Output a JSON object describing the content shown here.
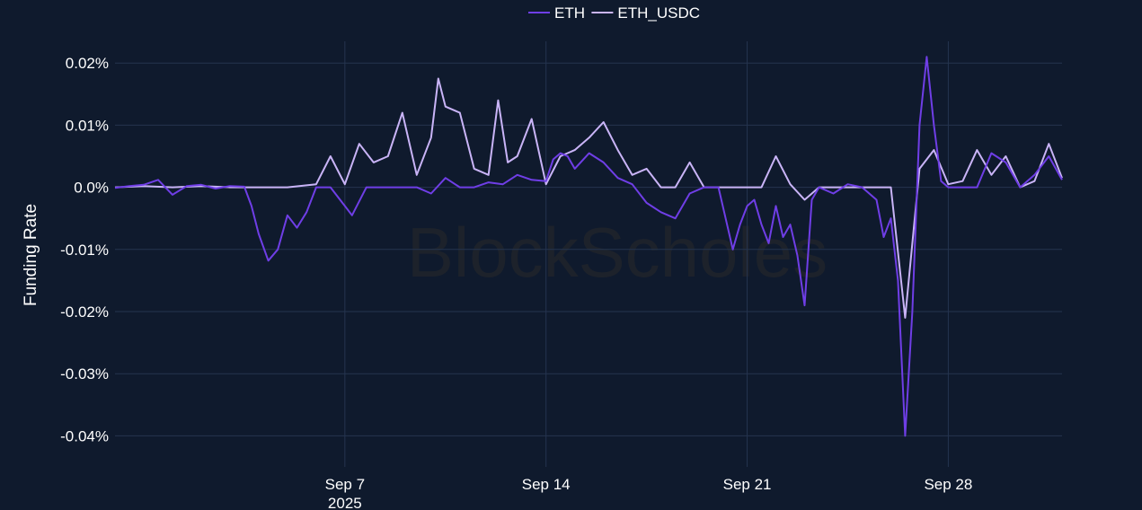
{
  "chart_data": {
    "type": "line",
    "title": "",
    "xlabel": "",
    "ylabel": "Funding Rate",
    "xlim": [
      "2025-08-30T00:00",
      "2025-10-01T23:00"
    ],
    "ylim": [
      -0.045,
      0.0235
    ],
    "y_unit": "%",
    "y_ticks": [
      0.02,
      0.01,
      0.0,
      -0.01,
      -0.02,
      -0.03,
      -0.04
    ],
    "y_tick_labels": [
      "0.02%",
      "0.01%",
      "0.0%",
      "-0.01%",
      "-0.02%",
      "-0.03%",
      "-0.04%"
    ],
    "x_ticks": [
      "2025-09-07",
      "2025-09-14",
      "2025-09-21",
      "2025-09-28"
    ],
    "x_tick_labels": [
      "Sep 7",
      "Sep 14",
      "Sep 21",
      "Sep 28"
    ],
    "x_tick_sublabels": [
      "2025",
      "",
      "",
      ""
    ],
    "grid": true,
    "legend_position": "top-center",
    "watermark": "BlockScholes",
    "series": [
      {
        "name": "ETH",
        "color": "#6f3ee6",
        "points": [
          [
            "2025-08-30T00:00",
            -0.0001
          ],
          [
            "2025-08-30T12:00",
            0.0002
          ],
          [
            "2025-08-31T00:00",
            0.0004
          ],
          [
            "2025-08-31T12:00",
            0.0012
          ],
          [
            "2025-09-01T00:00",
            -0.0012
          ],
          [
            "2025-09-01T12:00",
            0.0002
          ],
          [
            "2025-09-02T00:00",
            0.0004
          ],
          [
            "2025-09-02T12:00",
            -0.0002
          ],
          [
            "2025-09-03T00:00",
            0.0002
          ],
          [
            "2025-09-03T12:00",
            0.0001
          ],
          [
            "2025-09-03T18:00",
            -0.003
          ],
          [
            "2025-09-04T00:00",
            -0.0075
          ],
          [
            "2025-09-04T08:00",
            -0.0118
          ],
          [
            "2025-09-04T16:00",
            -0.01
          ],
          [
            "2025-09-05T00:00",
            -0.0045
          ],
          [
            "2025-09-05T08:00",
            -0.0065
          ],
          [
            "2025-09-05T16:00",
            -0.004
          ],
          [
            "2025-09-06T00:00",
            0.0
          ],
          [
            "2025-09-06T12:00",
            0.0
          ],
          [
            "2025-09-07T00:00",
            -0.003
          ],
          [
            "2025-09-07T06:00",
            -0.0045
          ],
          [
            "2025-09-07T18:00",
            0.0
          ],
          [
            "2025-09-08T12:00",
            0.0
          ],
          [
            "2025-09-09T12:00",
            0.0
          ],
          [
            "2025-09-10T00:00",
            -0.001
          ],
          [
            "2025-09-10T12:00",
            0.0015
          ],
          [
            "2025-09-11T00:00",
            0.0
          ],
          [
            "2025-09-11T12:00",
            0.0
          ],
          [
            "2025-09-12T00:00",
            0.0008
          ],
          [
            "2025-09-12T12:00",
            0.0005
          ],
          [
            "2025-09-13T00:00",
            0.002
          ],
          [
            "2025-09-13T12:00",
            0.0012
          ],
          [
            "2025-09-14T00:00",
            0.001
          ],
          [
            "2025-09-14T06:00",
            0.0045
          ],
          [
            "2025-09-14T12:00",
            0.0055
          ],
          [
            "2025-09-14T18:00",
            0.005
          ],
          [
            "2025-09-15T00:00",
            0.003
          ],
          [
            "2025-09-15T12:00",
            0.0055
          ],
          [
            "2025-09-16T00:00",
            0.004
          ],
          [
            "2025-09-16T12:00",
            0.0015
          ],
          [
            "2025-09-17T00:00",
            0.0005
          ],
          [
            "2025-09-17T12:00",
            -0.0025
          ],
          [
            "2025-09-18T00:00",
            -0.004
          ],
          [
            "2025-09-18T12:00",
            -0.005
          ],
          [
            "2025-09-19T00:00",
            -0.001
          ],
          [
            "2025-09-19T12:00",
            0.0
          ],
          [
            "2025-09-20T00:00",
            0.0
          ],
          [
            "2025-09-20T06:00",
            -0.005
          ],
          [
            "2025-09-20T12:00",
            -0.01
          ],
          [
            "2025-09-20T18:00",
            -0.006
          ],
          [
            "2025-09-21T00:00",
            -0.003
          ],
          [
            "2025-09-21T06:00",
            -0.002
          ],
          [
            "2025-09-21T12:00",
            -0.006
          ],
          [
            "2025-09-21T18:00",
            -0.009
          ],
          [
            "2025-09-22T00:00",
            -0.003
          ],
          [
            "2025-09-22T06:00",
            -0.008
          ],
          [
            "2025-09-22T12:00",
            -0.006
          ],
          [
            "2025-09-22T18:00",
            -0.011
          ],
          [
            "2025-09-23T00:00",
            -0.019
          ],
          [
            "2025-09-23T06:00",
            -0.002
          ],
          [
            "2025-09-23T12:00",
            0.0
          ],
          [
            "2025-09-24T00:00",
            -0.001
          ],
          [
            "2025-09-24T12:00",
            0.0005
          ],
          [
            "2025-09-25T00:00",
            0.0
          ],
          [
            "2025-09-25T12:00",
            -0.002
          ],
          [
            "2025-09-25T18:00",
            -0.008
          ],
          [
            "2025-09-26T00:00",
            -0.005
          ],
          [
            "2025-09-26T06:00",
            -0.015
          ],
          [
            "2025-09-26T12:00",
            -0.04
          ],
          [
            "2025-09-26T18:00",
            -0.02
          ],
          [
            "2025-09-27T00:00",
            0.01
          ],
          [
            "2025-09-27T06:00",
            0.021
          ],
          [
            "2025-09-27T12:00",
            0.01
          ],
          [
            "2025-09-27T18:00",
            0.001
          ],
          [
            "2025-09-28T00:00",
            0.0
          ],
          [
            "2025-09-28T12:00",
            0.0
          ],
          [
            "2025-09-29T00:00",
            0.0
          ],
          [
            "2025-09-29T12:00",
            0.0055
          ],
          [
            "2025-09-30T00:00",
            0.004
          ],
          [
            "2025-09-30T12:00",
            0.0
          ],
          [
            "2025-10-01T00:00",
            0.002
          ],
          [
            "2025-10-01T12:00",
            0.005
          ],
          [
            "2025-10-01T23:00",
            0.0012
          ]
        ]
      },
      {
        "name": "ETH_USDC",
        "color": "#c9b4f7",
        "points": [
          [
            "2025-08-30T00:00",
            0.0
          ],
          [
            "2025-08-31T00:00",
            0.0002
          ],
          [
            "2025-09-01T00:00",
            0.0
          ],
          [
            "2025-09-02T00:00",
            0.0002
          ],
          [
            "2025-09-03T00:00",
            0.0
          ],
          [
            "2025-09-04T00:00",
            0.0
          ],
          [
            "2025-09-05T00:00",
            0.0
          ],
          [
            "2025-09-06T00:00",
            0.0005
          ],
          [
            "2025-09-06T12:00",
            0.005
          ],
          [
            "2025-09-07T00:00",
            0.0005
          ],
          [
            "2025-09-07T12:00",
            0.007
          ],
          [
            "2025-09-08T00:00",
            0.004
          ],
          [
            "2025-09-08T12:00",
            0.005
          ],
          [
            "2025-09-09T00:00",
            0.012
          ],
          [
            "2025-09-09T12:00",
            0.002
          ],
          [
            "2025-09-10T00:00",
            0.008
          ],
          [
            "2025-09-10T06:00",
            0.0175
          ],
          [
            "2025-09-10T12:00",
            0.013
          ],
          [
            "2025-09-11T00:00",
            0.012
          ],
          [
            "2025-09-11T12:00",
            0.003
          ],
          [
            "2025-09-12T00:00",
            0.002
          ],
          [
            "2025-09-12T08:00",
            0.014
          ],
          [
            "2025-09-12T16:00",
            0.004
          ],
          [
            "2025-09-13T00:00",
            0.005
          ],
          [
            "2025-09-13T12:00",
            0.011
          ],
          [
            "2025-09-14T00:00",
            0.0005
          ],
          [
            "2025-09-14T12:00",
            0.005
          ],
          [
            "2025-09-15T00:00",
            0.006
          ],
          [
            "2025-09-15T12:00",
            0.008
          ],
          [
            "2025-09-16T00:00",
            0.0105
          ],
          [
            "2025-09-16T12:00",
            0.006
          ],
          [
            "2025-09-17T00:00",
            0.002
          ],
          [
            "2025-09-17T12:00",
            0.003
          ],
          [
            "2025-09-18T00:00",
            0.0
          ],
          [
            "2025-09-18T12:00",
            0.0
          ],
          [
            "2025-09-19T00:00",
            0.004
          ],
          [
            "2025-09-19T12:00",
            0.0
          ],
          [
            "2025-09-20T00:00",
            0.0
          ],
          [
            "2025-09-21T00:00",
            0.0
          ],
          [
            "2025-09-21T12:00",
            0.0
          ],
          [
            "2025-09-22T00:00",
            0.005
          ],
          [
            "2025-09-22T12:00",
            0.0005
          ],
          [
            "2025-09-23T00:00",
            -0.002
          ],
          [
            "2025-09-23T12:00",
            0.0
          ],
          [
            "2025-09-24T00:00",
            0.0
          ],
          [
            "2025-09-25T00:00",
            0.0
          ],
          [
            "2025-09-26T00:00",
            0.0
          ],
          [
            "2025-09-26T12:00",
            -0.021
          ],
          [
            "2025-09-27T00:00",
            0.003
          ],
          [
            "2025-09-27T12:00",
            0.006
          ],
          [
            "2025-09-28T00:00",
            0.0005
          ],
          [
            "2025-09-28T12:00",
            0.001
          ],
          [
            "2025-09-29T00:00",
            0.006
          ],
          [
            "2025-09-29T12:00",
            0.002
          ],
          [
            "2025-09-30T00:00",
            0.005
          ],
          [
            "2025-09-30T12:00",
            0.0
          ],
          [
            "2025-10-01T00:00",
            0.001
          ],
          [
            "2025-10-01T12:00",
            0.007
          ],
          [
            "2025-10-01T23:00",
            0.0015
          ]
        ]
      }
    ]
  }
}
